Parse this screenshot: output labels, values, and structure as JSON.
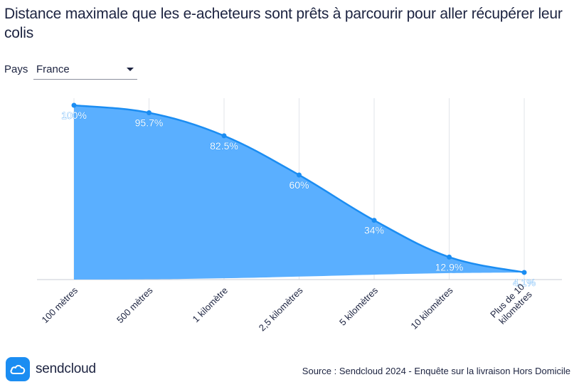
{
  "title": "Distance maximale que les e-acheteurs sont prêts à parcourir pour aller récupérer leur colis",
  "filter": {
    "label": "Pays",
    "selected": "France"
  },
  "chart_data": {
    "type": "area",
    "categories": [
      "100 mètres",
      "500 mètres",
      "1 kilomètre",
      "2,5 kilomètres",
      "5 kilomètres",
      "10 kilomètres",
      "Plus de 10 kilomètres"
    ],
    "values": [
      100,
      95.7,
      82.5,
      60,
      34,
      12.9,
      4.1
    ],
    "data_labels": [
      "100%",
      "95.7%",
      "82.5%",
      "60%",
      "34%",
      "12.9%",
      "4.1%"
    ],
    "ylim": [
      0,
      100
    ],
    "grid": "vertical",
    "colors": {
      "fill": "#5aafff",
      "line": "#1b8df2",
      "grid": "#e2e4ea",
      "axis": "#c9ccd4"
    }
  },
  "logo": {
    "text": "sendcloud",
    "icon": "cloud-icon"
  },
  "source": "Source : Sendcloud 2024 - Enquête sur la livraison Hors Domicile"
}
